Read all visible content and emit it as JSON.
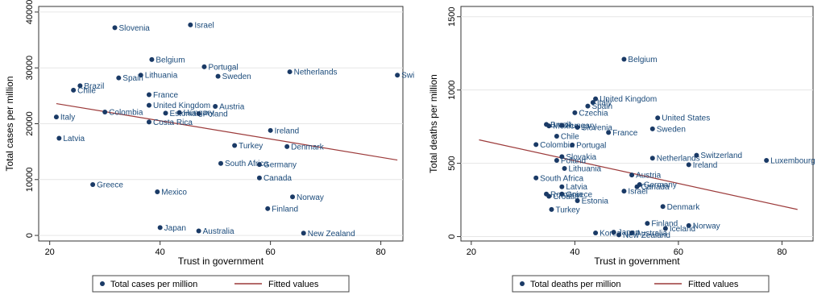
{
  "chart_data": [
    {
      "type": "scatter",
      "xlabel": "Trust in government",
      "ylabel": "Total cases per million",
      "xlim": [
        18,
        84
      ],
      "ylim": [
        -1000,
        41000
      ],
      "xticks": [
        20,
        40,
        60,
        80
      ],
      "yticks": [
        0,
        10000,
        20000,
        30000,
        40000
      ],
      "grid": true,
      "legend_position": "bottom",
      "colors": {
        "point": "#1a3a66",
        "fit": "#9c3a3a"
      },
      "series": [
        {
          "name": "Total cases per million",
          "points": [
            {
              "label": "Slovenia",
              "x": 31.8,
              "y": 37200
            },
            {
              "label": "Israel",
              "x": 45.5,
              "y": 37700
            },
            {
              "label": "Belgium",
              "x": 38.5,
              "y": 31500
            },
            {
              "label": "Portugal",
              "x": 48.0,
              "y": 30200
            },
            {
              "label": "Netherlands",
              "x": 63.5,
              "y": 29300
            },
            {
              "label": "Swi",
              "x": 83.0,
              "y": 28700
            },
            {
              "label": "Sweden",
              "x": 50.5,
              "y": 28500
            },
            {
              "label": "Lithuania",
              "x": 36.5,
              "y": 28700
            },
            {
              "label": "Spain",
              "x": 32.5,
              "y": 28200
            },
            {
              "label": "Brazil",
              "x": 25.5,
              "y": 26800
            },
            {
              "label": "Chile",
              "x": 24.3,
              "y": 26000
            },
            {
              "label": "France",
              "x": 38.0,
              "y": 25200
            },
            {
              "label": "United Kingdom",
              "x": 38.0,
              "y": 23300
            },
            {
              "label": "Austria",
              "x": 50.0,
              "y": 23100
            },
            {
              "label": "Colombia",
              "x": 30.0,
              "y": 22100
            },
            {
              "label": "Estonia",
              "x": 41.0,
              "y": 21900
            },
            {
              "label": "Hungary",
              "x": 43.5,
              "y": 22000
            },
            {
              "label": "Poland",
              "x": 47.0,
              "y": 21800
            },
            {
              "label": "Italy",
              "x": 21.2,
              "y": 21200
            },
            {
              "label": "Costa Rica",
              "x": 38.0,
              "y": 20300
            },
            {
              "label": "Ireland",
              "x": 60.0,
              "y": 18800
            },
            {
              "label": "Latvia",
              "x": 21.7,
              "y": 17400
            },
            {
              "label": "Turkey",
              "x": 53.5,
              "y": 16100
            },
            {
              "label": "Denmark",
              "x": 63.0,
              "y": 15900
            },
            {
              "label": "South Africa",
              "x": 51.0,
              "y": 12900
            },
            {
              "label": "Germany",
              "x": 58.0,
              "y": 12700
            },
            {
              "label": "Canada",
              "x": 58.0,
              "y": 10300
            },
            {
              "label": "Greece",
              "x": 27.8,
              "y": 9100
            },
            {
              "label": "Mexico",
              "x": 39.5,
              "y": 7800
            },
            {
              "label": "Norway",
              "x": 64.0,
              "y": 6900
            },
            {
              "label": "Finland",
              "x": 59.5,
              "y": 4800
            },
            {
              "label": "Japan",
              "x": 40.0,
              "y": 1400
            },
            {
              "label": "Australia",
              "x": 47.0,
              "y": 800
            },
            {
              "label": "New Zealand",
              "x": 66.0,
              "y": 400
            }
          ]
        },
        {
          "name": "Fitted values",
          "line": [
            {
              "x": 21.2,
              "y": 23600
            },
            {
              "x": 83.0,
              "y": 13500
            }
          ]
        }
      ]
    },
    {
      "type": "scatter",
      "xlabel": "Trust in government",
      "ylabel": "Total deaths per million",
      "xlim": [
        18,
        86
      ],
      "ylim": [
        -30,
        1570
      ],
      "xticks": [
        20,
        40,
        60,
        80
      ],
      "yticks": [
        0,
        500,
        1000,
        1500
      ],
      "grid": true,
      "legend_position": "bottom",
      "colors": {
        "point": "#1a3a66",
        "fit": "#9c3a3a"
      },
      "series": [
        {
          "name": "Total deaths per million",
          "points": [
            {
              "label": "Belgium",
              "x": 49.5,
              "y": 1210
            },
            {
              "label": "United Kingdom",
              "x": 44.0,
              "y": 940
            },
            {
              "label": "Italy",
              "x": 43.5,
              "y": 915
            },
            {
              "label": "Spain",
              "x": 42.5,
              "y": 890
            },
            {
              "label": "Czechia",
              "x": 40.0,
              "y": 845
            },
            {
              "label": "United States",
              "x": 56.0,
              "y": 810
            },
            {
              "label": "Brazil",
              "x": 34.5,
              "y": 765
            },
            {
              "label": "Mexico",
              "x": 35.0,
              "y": 755
            },
            {
              "label": "Hungary",
              "x": 37.5,
              "y": 760
            },
            {
              "label": "Slovenia",
              "x": 40.5,
              "y": 745
            },
            {
              "label": "Sweden",
              "x": 55.0,
              "y": 735
            },
            {
              "label": "France",
              "x": 46.5,
              "y": 710
            },
            {
              "label": "Chile",
              "x": 36.5,
              "y": 685
            },
            {
              "label": "Colombia",
              "x": 32.5,
              "y": 628
            },
            {
              "label": "Portugal",
              "x": 39.5,
              "y": 625
            },
            {
              "label": "Slovakia",
              "x": 37.5,
              "y": 545
            },
            {
              "label": "Poland",
              "x": 36.5,
              "y": 520
            },
            {
              "label": "Netherlands",
              "x": 55.0,
              "y": 535
            },
            {
              "label": "Switzerland",
              "x": 63.5,
              "y": 555
            },
            {
              "label": "Luxembourg",
              "x": 77.0,
              "y": 520
            },
            {
              "label": "Ireland",
              "x": 62.0,
              "y": 490
            },
            {
              "label": "Lithuania",
              "x": 38.0,
              "y": 465
            },
            {
              "label": "Austria",
              "x": 51.0,
              "y": 420
            },
            {
              "label": "South Africa",
              "x": 32.5,
              "y": 400
            },
            {
              "label": "Latvia",
              "x": 37.5,
              "y": 340
            },
            {
              "label": "Germany",
              "x": 52.5,
              "y": 355
            },
            {
              "label": "Canada",
              "x": 52.0,
              "y": 340
            },
            {
              "label": "Israel",
              "x": 49.5,
              "y": 310
            },
            {
              "label": "Romania",
              "x": 34.5,
              "y": 290
            },
            {
              "label": "Greece",
              "x": 37.5,
              "y": 290
            },
            {
              "label": "Croatia",
              "x": 35.0,
              "y": 275
            },
            {
              "label": "Estonia",
              "x": 40.5,
              "y": 245
            },
            {
              "label": "Denmark",
              "x": 57.0,
              "y": 205
            },
            {
              "label": "Turkey",
              "x": 35.5,
              "y": 185
            },
            {
              "label": "Finland",
              "x": 54.0,
              "y": 90
            },
            {
              "label": "Norway",
              "x": 62.0,
              "y": 75
            },
            {
              "label": "Iceland",
              "x": 57.5,
              "y": 55
            },
            {
              "label": "Korea",
              "x": 44.0,
              "y": 25
            },
            {
              "label": "Japan",
              "x": 47.5,
              "y": 30
            },
            {
              "label": "Australia",
              "x": 51.0,
              "y": 25
            },
            {
              "label": "New Zealand",
              "x": 48.5,
              "y": 12
            }
          ]
        },
        {
          "name": "Fitted values",
          "line": [
            {
              "x": 21.5,
              "y": 660
            },
            {
              "x": 83.0,
              "y": 185
            }
          ]
        }
      ]
    }
  ]
}
